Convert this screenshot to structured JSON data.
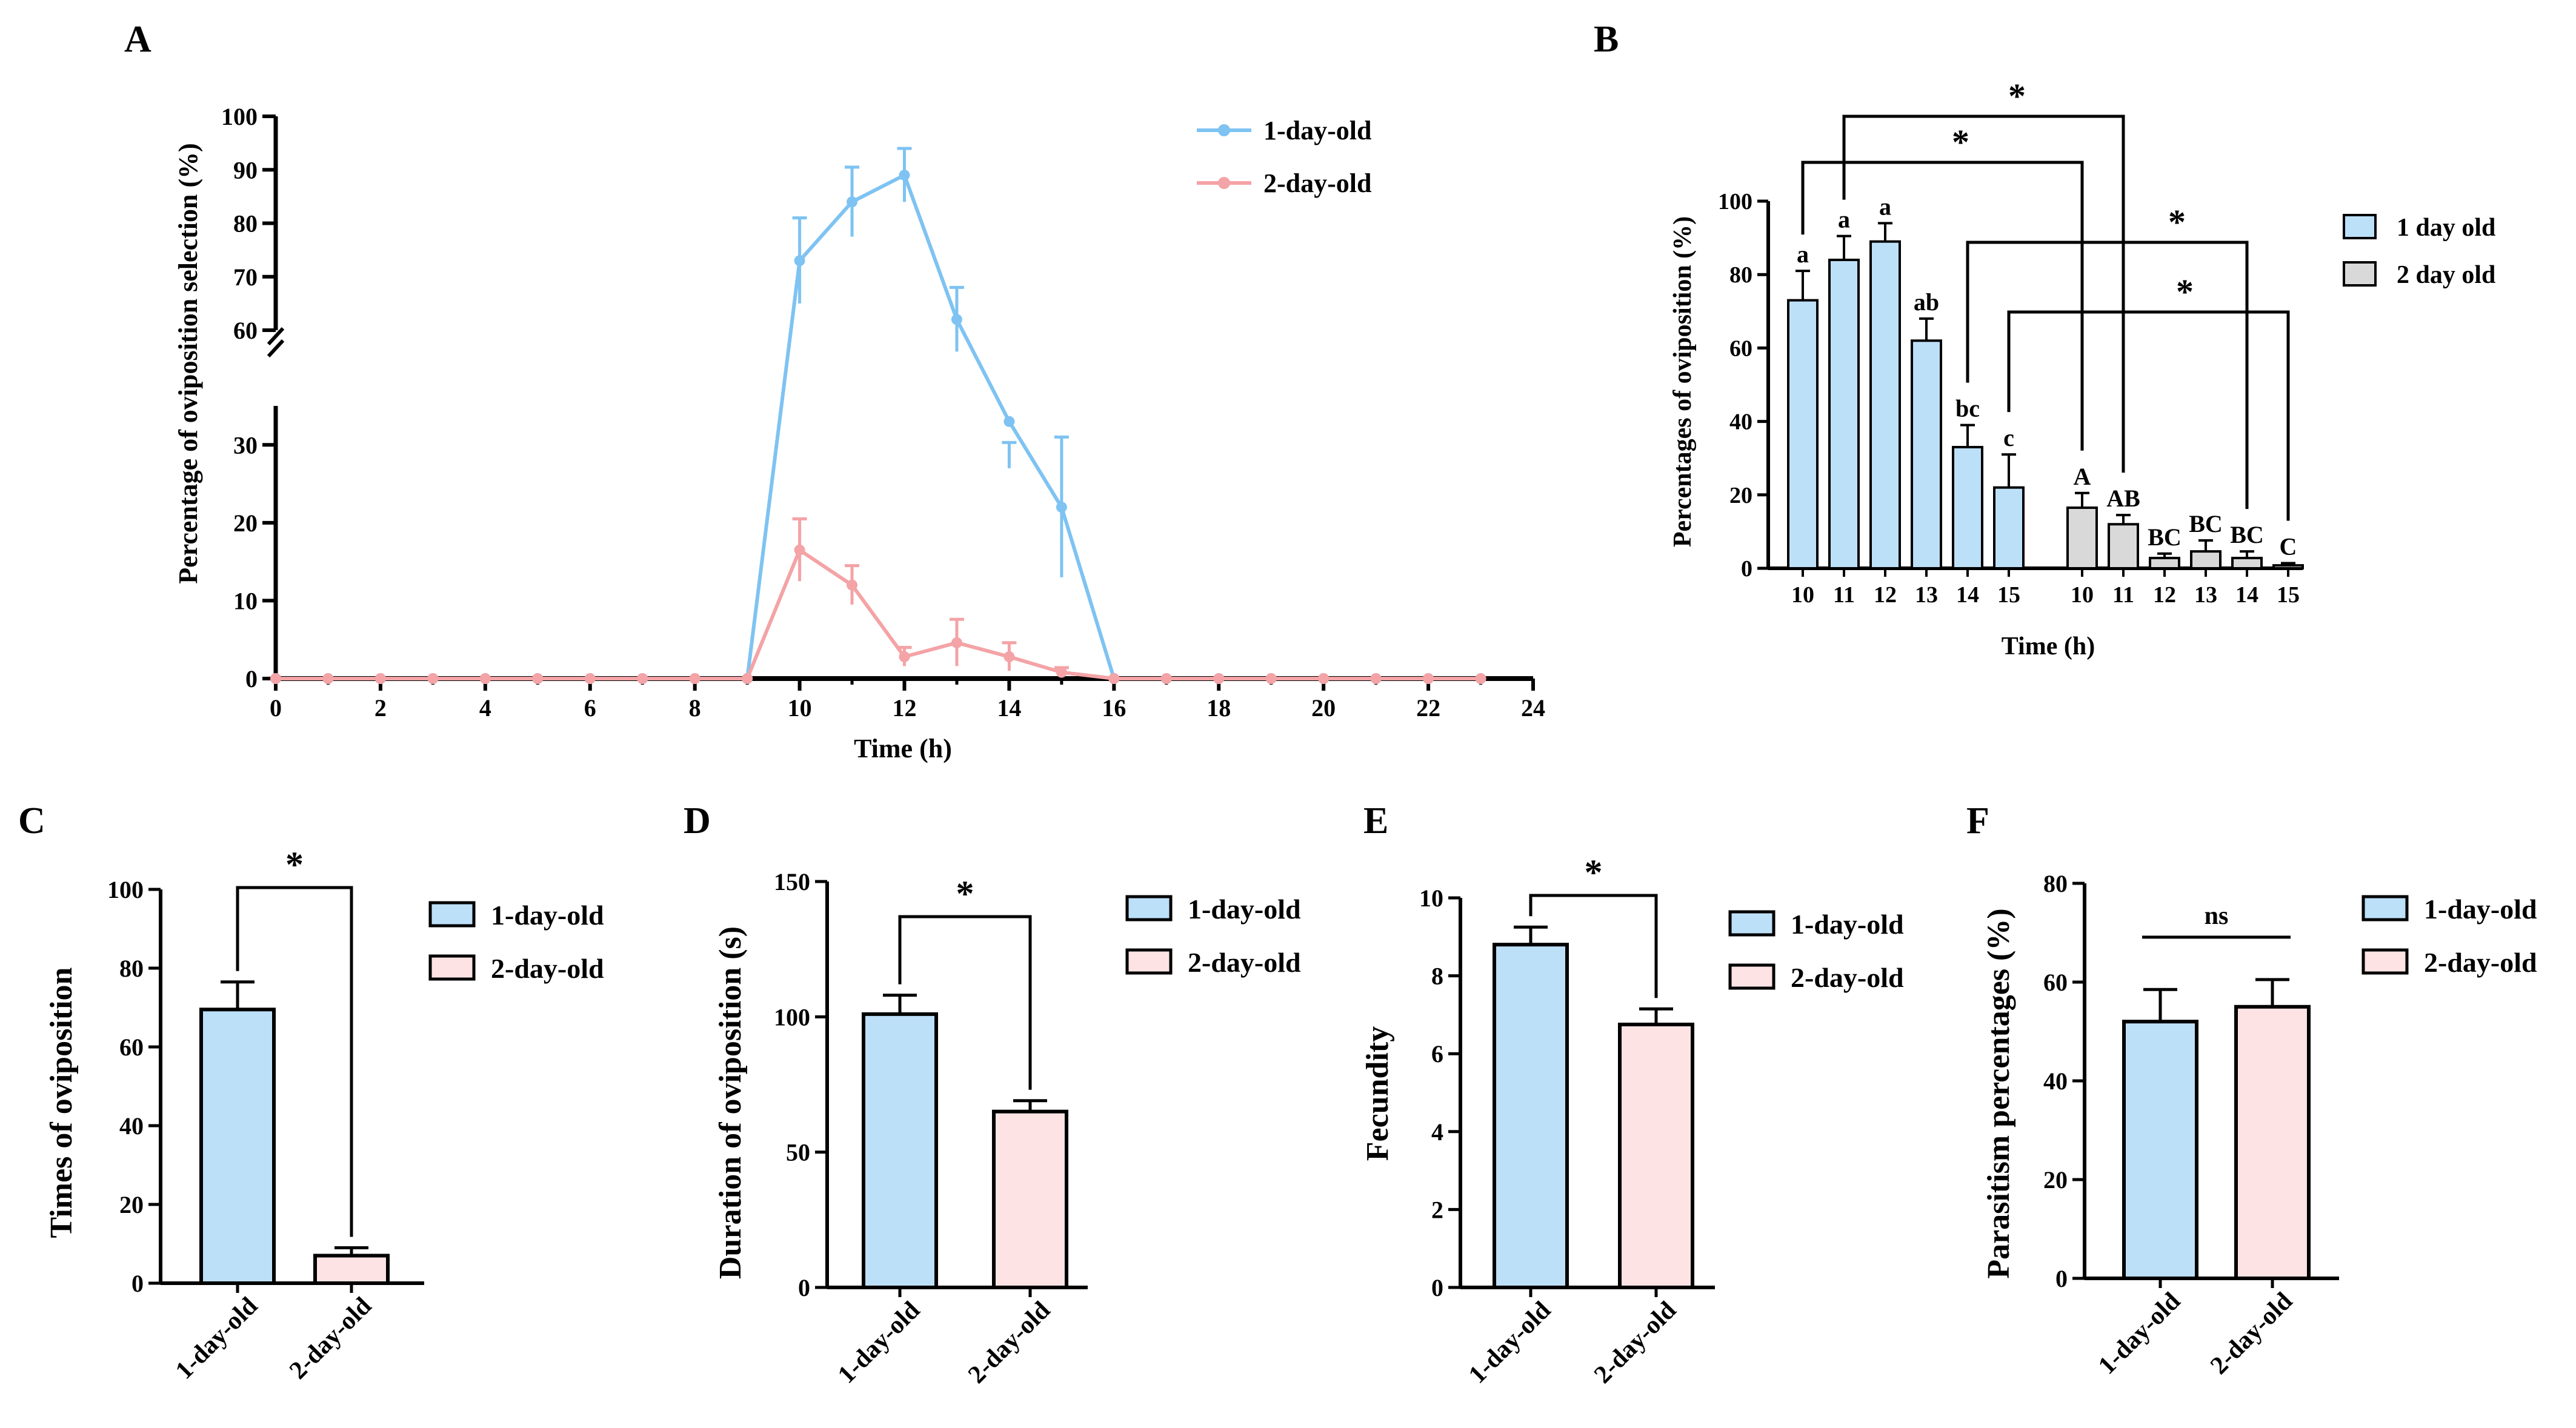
{
  "colors": {
    "blue": "#BDE0F9",
    "blue_line": "#7EC3F2",
    "pink": "#FDE3E3",
    "pink_line": "#F4A3A6",
    "grey": "#D9D9D9",
    "axis": "#000000"
  },
  "chart_data": [
    {
      "panel": "A",
      "type": "line",
      "xlabel": "Time (h)",
      "ylabel": "Percentage of oviposition selection (%)",
      "xlim": [
        0,
        24
      ],
      "x_ticks": [
        "0",
        "2",
        "4",
        "6",
        "8",
        "10",
        "12",
        "14",
        "16",
        "18",
        "20",
        "22",
        "24"
      ],
      "y_ticks_lower": [
        "0",
        "10",
        "20",
        "30"
      ],
      "y_ticks_upper": [
        "60",
        "70",
        "80",
        "90",
        "100"
      ],
      "axis_break": [
        35,
        60
      ],
      "x": [
        0,
        1,
        2,
        3,
        4,
        5,
        6,
        7,
        8,
        9,
        10,
        11,
        12,
        13,
        14,
        15,
        16,
        17,
        18,
        19,
        20,
        21,
        22,
        23
      ],
      "series": [
        {
          "name": "1-day-old",
          "color": "#7EC3F2",
          "values": [
            0,
            0,
            0,
            0,
            0,
            0,
            0,
            0,
            0,
            0,
            73,
            84,
            89,
            62,
            33,
            22,
            0,
            0,
            0,
            0,
            0,
            0,
            0,
            0
          ],
          "errors": [
            0,
            0,
            0,
            0,
            0,
            0,
            0,
            0,
            0,
            0,
            8,
            6.5,
            5,
            6,
            6,
            9,
            0,
            0,
            0,
            0,
            0,
            0,
            0,
            0
          ]
        },
        {
          "name": "2-day-old",
          "color": "#F4A3A6",
          "values": [
            0,
            0,
            0,
            0,
            0,
            0,
            0,
            0,
            0,
            0,
            16.5,
            12,
            2.8,
            4.6,
            2.8,
            0.8,
            0,
            0,
            0,
            0,
            0,
            0,
            0,
            0
          ],
          "errors": [
            0,
            0,
            0,
            0,
            0,
            0,
            0,
            0,
            0,
            0,
            4,
            2.5,
            1.2,
            3,
            1.8,
            0.6,
            0,
            0,
            0,
            0,
            0,
            0,
            0,
            0
          ]
        }
      ]
    },
    {
      "panel": "B",
      "type": "bar",
      "xlabel": "Time (h)",
      "ylabel": "Percentages of oviposition (%)",
      "ylim": [
        0,
        100
      ],
      "y_ticks": [
        "0",
        "20",
        "40",
        "60",
        "80",
        "100"
      ],
      "series": [
        {
          "name": "1 day old",
          "color": "#BDE0F9",
          "categories": [
            "10",
            "11",
            "12",
            "13",
            "14",
            "15"
          ],
          "values": [
            73,
            84,
            89,
            62,
            33,
            22
          ],
          "errors": [
            8,
            6.5,
            5,
            6,
            6,
            9
          ],
          "letters": [
            "a",
            "a",
            "a",
            "ab",
            "bc",
            "c"
          ]
        },
        {
          "name": "2 day old",
          "color": "#D9D9D9",
          "categories": [
            "10",
            "11",
            "12",
            "13",
            "14",
            "15"
          ],
          "values": [
            16.5,
            12,
            2.8,
            4.6,
            2.8,
            0.8
          ],
          "errors": [
            4,
            2.5,
            1.2,
            3,
            1.8,
            0.6
          ],
          "letters": [
            "A",
            "AB",
            "BC",
            "BC",
            "BC",
            "C"
          ]
        }
      ],
      "significance": [
        "*",
        "*",
        "*",
        "*"
      ]
    },
    {
      "panel": "C",
      "type": "bar",
      "ylabel": "Times of oviposition",
      "ylim": [
        0,
        100
      ],
      "y_ticks": [
        "0",
        "20",
        "40",
        "60",
        "80",
        "100"
      ],
      "categories": [
        "1-day-old",
        "2-day-old"
      ],
      "values": [
        69.5,
        7
      ],
      "errors": [
        7,
        2
      ],
      "significance": "*",
      "legend": [
        "1-day-old",
        "2-day-old"
      ]
    },
    {
      "panel": "D",
      "type": "bar",
      "ylabel": "Duration of oviposition (s)",
      "ylim": [
        0,
        150
      ],
      "y_ticks": [
        "0",
        "50",
        "100",
        "150"
      ],
      "categories": [
        "1-day-old",
        "2-day-old"
      ],
      "values": [
        101,
        65
      ],
      "errors": [
        7,
        4
      ],
      "significance": "*",
      "legend": [
        "1-day-old",
        "2-day-old"
      ]
    },
    {
      "panel": "E",
      "type": "bar",
      "ylabel": "Fecundity",
      "ylim": [
        0,
        10
      ],
      "y_ticks": [
        "0",
        "2",
        "4",
        "6",
        "8",
        "10"
      ],
      "categories": [
        "1-day-old",
        "2-day-old"
      ],
      "values": [
        8.8,
        6.75
      ],
      "errors": [
        0.45,
        0.4
      ],
      "significance": "*",
      "legend": [
        "1-day-old",
        "2-day-old"
      ]
    },
    {
      "panel": "F",
      "type": "bar",
      "ylabel": "Parasitism percentages (%)",
      "ylim": [
        0,
        80
      ],
      "y_ticks": [
        "0",
        "20",
        "40",
        "60",
        "80"
      ],
      "categories": [
        "1-day-old",
        "2-day-old"
      ],
      "values": [
        52,
        55
      ],
      "errors": [
        6.5,
        5.5
      ],
      "significance": "ns",
      "legend": [
        "1-day-old",
        "2-day-old"
      ]
    }
  ]
}
